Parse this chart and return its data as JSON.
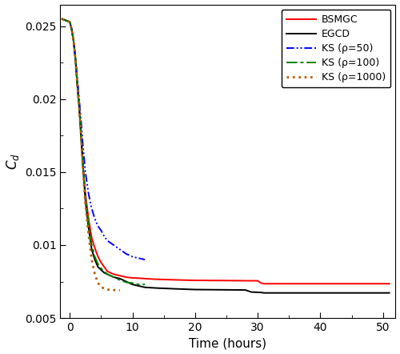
{
  "title": "",
  "xlabel": "Time (hours)",
  "ylabel": "$C_d$",
  "xlim": [
    -1.5,
    52
  ],
  "ylim": [
    0.005,
    0.0265
  ],
  "yticks": [
    0.005,
    0.01,
    0.015,
    0.02,
    0.025
  ],
  "xticks": [
    0,
    10,
    20,
    30,
    40,
    50
  ],
  "series": {
    "BSMGC": {
      "color": "#ff0000",
      "linestyle": "-",
      "linewidth": 1.4,
      "x": [
        -1.2,
        0.0,
        0.3,
        0.6,
        0.9,
        1.2,
        1.5,
        1.8,
        2.1,
        2.5,
        3.0,
        3.5,
        4.0,
        4.5,
        5.0,
        5.5,
        6.0,
        7.0,
        8.0,
        9.0,
        10.0,
        11.0,
        12.0,
        14.0,
        18.0,
        20.0,
        30.0,
        30.5,
        31.0,
        51.0
      ],
      "y": [
        0.0255,
        0.0253,
        0.0248,
        0.024,
        0.0228,
        0.021,
        0.0195,
        0.0175,
        0.0155,
        0.0135,
        0.0118,
        0.0105,
        0.0098,
        0.0092,
        0.0088,
        0.0085,
        0.0082,
        0.008,
        0.0079,
        0.0078,
        0.00775,
        0.00773,
        0.0077,
        0.00765,
        0.0076,
        0.00758,
        0.00755,
        0.0074,
        0.00735,
        0.00735
      ]
    },
    "EGCD": {
      "color": "#000000",
      "linestyle": "-",
      "linewidth": 1.4,
      "x": [
        -1.2,
        0.0,
        0.3,
        0.6,
        0.9,
        1.2,
        1.5,
        1.8,
        2.1,
        2.5,
        3.0,
        3.5,
        4.0,
        4.5,
        5.0,
        5.5,
        6.0,
        7.0,
        8.0,
        9.0,
        10.0,
        11.0,
        12.0,
        14.0,
        18.0,
        20.0,
        28.0,
        29.0,
        30.5,
        31.0,
        51.0
      ],
      "y": [
        0.0255,
        0.0253,
        0.0248,
        0.024,
        0.0228,
        0.021,
        0.0195,
        0.0175,
        0.0155,
        0.013,
        0.0112,
        0.0097,
        0.009,
        0.0085,
        0.0083,
        0.0081,
        0.008,
        0.0078,
        0.0077,
        0.0075,
        0.0073,
        0.0072,
        0.0071,
        0.00705,
        0.00698,
        0.00695,
        0.00692,
        0.00678,
        0.00675,
        0.00672,
        0.00672
      ]
    },
    "KS50": {
      "color": "#0000ff",
      "linewidth": 1.4,
      "x": [
        -1.2,
        0.0,
        0.3,
        0.6,
        0.9,
        1.2,
        1.5,
        1.8,
        2.1,
        2.5,
        3.0,
        3.5,
        4.0,
        4.5,
        5.0,
        5.5,
        6.0,
        7.0,
        8.0,
        9.0,
        10.0,
        11.0,
        12.0
      ],
      "y": [
        0.0255,
        0.0253,
        0.0248,
        0.024,
        0.0228,
        0.0215,
        0.02,
        0.0185,
        0.0168,
        0.015,
        0.0135,
        0.0125,
        0.0118,
        0.0113,
        0.011,
        0.0106,
        0.0103,
        0.01,
        0.0097,
        0.0094,
        0.0092,
        0.0091,
        0.009
      ]
    },
    "KS100": {
      "color": "#008000",
      "linewidth": 1.4,
      "x": [
        -1.2,
        0.0,
        0.3,
        0.6,
        0.9,
        1.2,
        1.5,
        1.8,
        2.1,
        2.5,
        3.0,
        3.5,
        4.0,
        4.5,
        5.0,
        5.5,
        6.0,
        7.0,
        8.0,
        9.0,
        10.0,
        11.0,
        12.0
      ],
      "y": [
        0.0255,
        0.0253,
        0.0248,
        0.024,
        0.0228,
        0.021,
        0.0195,
        0.0175,
        0.0155,
        0.0132,
        0.0115,
        0.01,
        0.0092,
        0.0087,
        0.0084,
        0.0082,
        0.008,
        0.0078,
        0.0076,
        0.00745,
        0.0074,
        0.0073,
        0.0073
      ]
    },
    "KS1000": {
      "color": "#b86000",
      "linestyle": ":",
      "linewidth": 2.0,
      "x": [
        -1.2,
        0.0,
        0.3,
        0.6,
        0.9,
        1.2,
        1.5,
        1.8,
        2.1,
        2.5,
        3.0,
        3.5,
        4.0,
        4.5,
        5.0,
        5.5,
        6.0,
        7.0,
        8.0
      ],
      "y": [
        0.0255,
        0.0253,
        0.0248,
        0.024,
        0.0228,
        0.021,
        0.0195,
        0.0175,
        0.0152,
        0.0128,
        0.0107,
        0.009,
        0.008,
        0.0074,
        0.00715,
        0.007,
        0.00695,
        0.00692,
        0.0069
      ]
    }
  },
  "legend": {
    "BSMGC": "BSMGC",
    "EGCD": "EGCD",
    "KS50": "KS (ρ=50)",
    "KS100": "KS (ρ=100)",
    "KS1000": "KS (ρ=1000)"
  },
  "background_color": "#ffffff",
  "figure_width": 5.0,
  "figure_height": 4.42,
  "dpi": 100
}
